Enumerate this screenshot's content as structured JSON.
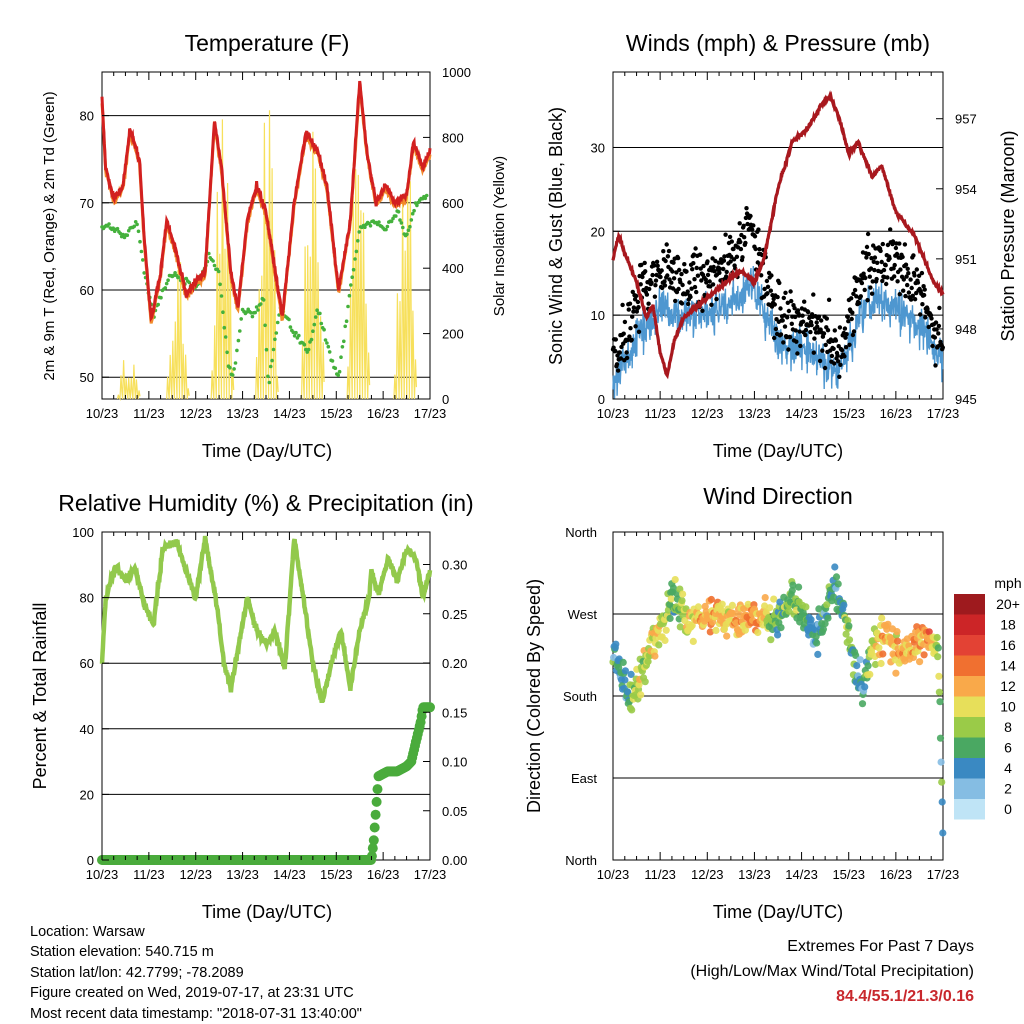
{
  "time_ticks": [
    "10/23",
    "11/23",
    "12/23",
    "13/23",
    "14/23",
    "15/23",
    "16/23",
    "17/23"
  ],
  "time_label": "Time (Day/UTC)",
  "chart_data": [
    {
      "id": "temperature",
      "type": "line",
      "title": "Temperature (F)",
      "ylabel": "2m & 9m T (Red, Orange) & 2m Td (Green)",
      "y2label": "Solar Insolation (Yellow)",
      "xlabel": "Time (Day/UTC)",
      "x_range_days": [
        0,
        7
      ],
      "ylim": [
        47.5,
        85
      ],
      "yticks": [
        50,
        60,
        70,
        80
      ],
      "y2lim": [
        0,
        1000
      ],
      "y2ticks": [
        0,
        200,
        400,
        600,
        800,
        1000
      ],
      "grid": "horizontal",
      "colors": {
        "t2m": "#d22020",
        "t9m": "#f28a2a",
        "td2m": "#44b13c",
        "solar": "#f7e05c"
      },
      "series": [
        {
          "key": "t2m",
          "x": [
            0,
            0.08,
            0.25,
            0.45,
            0.6,
            0.8,
            0.9,
            1.05,
            1.25,
            1.38,
            1.6,
            1.8,
            2.0,
            2.2,
            2.4,
            2.55,
            2.75,
            2.9,
            3.1,
            3.3,
            3.5,
            3.7,
            3.85,
            4.1,
            4.35,
            4.6,
            4.8,
            5.05,
            5.3,
            5.5,
            5.65,
            5.85,
            6.05,
            6.25,
            6.5,
            6.65,
            6.85,
            7.0
          ],
          "y": [
            82,
            74,
            70.5,
            72,
            78.5,
            75,
            66,
            56.5,
            62,
            68,
            64,
            59.5,
            61,
            62,
            79.5,
            74,
            62,
            58,
            68,
            72,
            69,
            62,
            57,
            70,
            78,
            76,
            72,
            60,
            68,
            84,
            76,
            70,
            72,
            70,
            71,
            77,
            74,
            76
          ]
        },
        {
          "key": "td2m",
          "x": [
            0,
            0.3,
            0.5,
            0.75,
            0.9,
            1.1,
            1.3,
            1.5,
            1.8,
            2.0,
            2.3,
            2.5,
            2.7,
            2.8,
            3.0,
            3.2,
            3.45,
            3.55,
            3.8,
            4.1,
            4.4,
            4.6,
            4.9,
            5.05,
            5.3,
            5.5,
            5.8,
            6.05,
            6.3,
            6.5,
            6.7,
            6.95
          ],
          "y": [
            67.5,
            67,
            66,
            68,
            62,
            57,
            60,
            62,
            61,
            60,
            64,
            62,
            51,
            50,
            58,
            57,
            59,
            49,
            58,
            55,
            53,
            58,
            52,
            50,
            60,
            67,
            68,
            67,
            69,
            66,
            70,
            71
          ]
        },
        {
          "key": "solar",
          "peaks": [
            {
              "x": 0.55,
              "v": 160
            },
            {
              "x": 1.6,
              "v": 450
            },
            {
              "x": 2.55,
              "v": 900
            },
            {
              "x": 3.5,
              "v": 950
            },
            {
              "x": 4.48,
              "v": 1000
            },
            {
              "x": 5.45,
              "v": 980
            },
            {
              "x": 6.45,
              "v": 900
            }
          ]
        }
      ]
    },
    {
      "id": "winds",
      "type": "scatter",
      "title": "Winds (mph) & Pressure (mb)",
      "ylabel": "Sonic Wind & Gust (Blue, Black)",
      "y2label": "Station Pressure (Maroon)",
      "xlabel": "Time (Day/UTC)",
      "x_range_days": [
        0,
        7
      ],
      "ylim": [
        0,
        39
      ],
      "yticks": [
        0,
        10,
        20,
        30
      ],
      "y2lim": [
        945,
        959
      ],
      "y2ticks": [
        945,
        948,
        951,
        954,
        957
      ],
      "grid": "horizontal",
      "colors": {
        "wind": "#4e97d0",
        "gust": "#000000",
        "pressure": "#a8181e"
      },
      "series": [
        {
          "key": "wind_mean",
          "x": [
            0,
            0.2,
            0.4,
            0.7,
            1.0,
            1.3,
            1.7,
            2.0,
            2.4,
            2.7,
            2.9,
            3.1,
            3.4,
            3.7,
            4.0,
            4.3,
            4.6,
            4.8,
            5.0,
            5.3,
            5.6,
            5.9,
            6.2,
            6.5,
            6.8,
            7.0
          ],
          "y": [
            2,
            4,
            6,
            9,
            11,
            10,
            10,
            10,
            11,
            12,
            14,
            12,
            8,
            6,
            6,
            5,
            4,
            3,
            6,
            10,
            12,
            11,
            10,
            9,
            6,
            5
          ]
        },
        {
          "key": "gust_mean",
          "x": [
            0,
            0.2,
            0.4,
            0.7,
            1.0,
            1.3,
            1.7,
            2.0,
            2.4,
            2.7,
            2.9,
            3.1,
            3.4,
            3.7,
            4.0,
            4.3,
            4.6,
            4.8,
            5.0,
            5.3,
            5.6,
            5.9,
            6.2,
            6.5,
            6.8,
            7.0
          ],
          "y": [
            4,
            7,
            10,
            14,
            16,
            14,
            15,
            14,
            16,
            18,
            22,
            17,
            12,
            9,
            9,
            8,
            7,
            5,
            9,
            15,
            17,
            16,
            15,
            13,
            8,
            7
          ]
        },
        {
          "key": "pressure",
          "x": [
            0,
            0.12,
            0.3,
            0.5,
            0.7,
            0.85,
            1.0,
            1.15,
            1.3,
            1.5,
            1.8,
            2.1,
            2.4,
            2.7,
            3.0,
            3.2,
            3.5,
            3.8,
            4.1,
            4.4,
            4.6,
            4.8,
            5.0,
            5.2,
            5.5,
            5.7,
            6.0,
            6.2,
            6.4,
            6.6,
            6.8,
            7.0
          ],
          "y": [
            951,
            952,
            951,
            950,
            948.5,
            949,
            947,
            946,
            947.5,
            948.5,
            949,
            949.5,
            950,
            950.5,
            950,
            951,
            954,
            956,
            956.5,
            957.5,
            958,
            957,
            955.5,
            956,
            954.5,
            955,
            953,
            952.5,
            952,
            951,
            950,
            949.5
          ]
        }
      ]
    },
    {
      "id": "humidity",
      "type": "line",
      "title": "Relative Humidity (%) & Precipitation (in)",
      "ylabel": "Percent & Total Rainfall",
      "xlabel": "Time (Day/UTC)",
      "x_range_days": [
        0,
        7
      ],
      "ylim": [
        0,
        100
      ],
      "yticks": [
        0,
        20,
        40,
        60,
        80,
        100
      ],
      "y2lim": [
        0,
        0.333
      ],
      "y2ticks": [
        0,
        0.05,
        0.1,
        0.15,
        0.2,
        0.25,
        0.3
      ],
      "grid": "horizontal",
      "colors": {
        "rh": "#92c94c",
        "precip": "#4aab3c"
      },
      "series": [
        {
          "key": "rh",
          "x": [
            0,
            0.08,
            0.3,
            0.5,
            0.7,
            0.9,
            1.1,
            1.3,
            1.6,
            1.8,
            2.0,
            2.2,
            2.45,
            2.6,
            2.75,
            2.9,
            3.1,
            3.3,
            3.5,
            3.7,
            3.9,
            4.1,
            4.35,
            4.5,
            4.7,
            4.9,
            5.1,
            5.3,
            5.5,
            5.7,
            5.75,
            5.9,
            6.1,
            6.3,
            6.5,
            6.7,
            6.85,
            7.0
          ],
          "y": [
            60,
            80,
            90,
            85,
            89,
            78,
            72,
            95,
            97,
            88,
            80,
            98,
            78,
            60,
            52,
            64,
            80,
            70,
            66,
            70,
            58,
            98,
            75,
            60,
            48,
            60,
            70,
            52,
            70,
            80,
            88,
            81,
            92,
            85,
            95,
            92,
            80,
            88
          ]
        },
        {
          "key": "precip_total",
          "x": [
            0,
            5.75,
            5.8,
            5.9,
            6.1,
            6.3,
            6.5,
            6.6,
            6.7,
            6.8,
            6.85,
            7.0
          ],
          "y": [
            0,
            0,
            0.02,
            0.085,
            0.09,
            0.09,
            0.095,
            0.1,
            0.12,
            0.14,
            0.155,
            0.155
          ]
        }
      ]
    },
    {
      "id": "wind_direction",
      "type": "scatter",
      "title": "Wind Direction",
      "ylabel": "Direction (Colored By Speed)",
      "xlabel": "Time (Day/UTC)",
      "x_range_days": [
        0,
        7
      ],
      "ylim_deg": [
        0,
        360
      ],
      "ytick_labels": [
        "North",
        "East",
        "South",
        "West",
        "North"
      ],
      "grid": "horizontal",
      "legend_title": "mph",
      "legend_labels": [
        "20+",
        "18",
        "16",
        "14",
        "12",
        "10",
        "8",
        "6",
        "4",
        "2",
        "0"
      ],
      "legend_colors": [
        "#9e1a1e",
        "#cc2527",
        "#e34234",
        "#f07030",
        "#f9a94a",
        "#e7df5a",
        "#9acb48",
        "#4aa862",
        "#3a89c2",
        "#85bde3",
        "#bfe4f6"
      ],
      "series": [
        {
          "key": "direction_trend",
          "x": [
            0,
            0.2,
            0.3,
            0.5,
            0.8,
            1.1,
            1.3,
            1.6,
            2.0,
            2.5,
            3.0,
            3.3,
            3.5,
            3.8,
            4.1,
            4.3,
            4.5,
            4.7,
            5.0,
            5.15,
            5.3,
            5.5,
            5.8,
            6.1,
            6.4,
            6.7,
            6.9,
            7.0
          ],
          "y": [
            230,
            200,
            180,
            190,
            235,
            265,
            290,
            260,
            270,
            265,
            265,
            260,
            262,
            285,
            270,
            245,
            275,
            300,
            250,
            210,
            185,
            230,
            250,
            225,
            235,
            245,
            230,
            30
          ],
          "speed": [
            4,
            5,
            5,
            8,
            10,
            9,
            6,
            10,
            12,
            11,
            13,
            9,
            6,
            8,
            6,
            4,
            6,
            5,
            8,
            5,
            4,
            10,
            12,
            11,
            12,
            12,
            8,
            3
          ]
        }
      ]
    }
  ],
  "info": {
    "location": "Location: Warsaw",
    "elevation": "Station elevation: 540.715 m",
    "latlon": "Station lat/lon: 42.7799; -78.2089",
    "created": "Figure created on Wed, 2019-07-17, at 23:31 UTC",
    "timestamp": "Most recent data timestamp: \"2018-07-31 13:40:00\""
  },
  "extremes": {
    "title": "Extremes For Past 7 Days",
    "subtitle": "(High/Low/Max Wind/Total Precipitation)",
    "values": "84.4/55.1/21.3/0.16"
  }
}
